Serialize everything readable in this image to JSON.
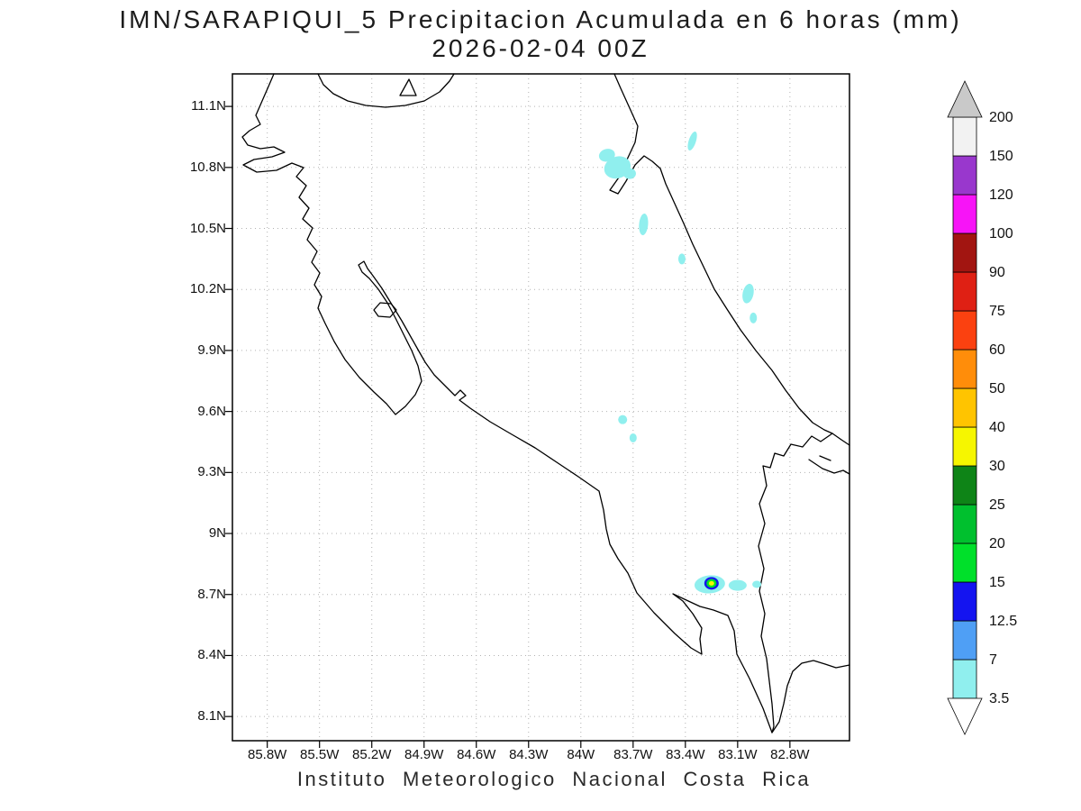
{
  "title": {
    "line1": "IMN/SARAPIQUI_5 Precipitacion Acumulada en 6 horas (mm)",
    "line2": "2026-02-04 00Z"
  },
  "footer": "Instituto Meteorologico Nacional Costa Rica",
  "chart_data": {
    "type": "heatmap",
    "title": "IMN/SARAPIQUI_5 Precipitacion Acumulada en 6 horas (mm)",
    "datetime": "2026-02-04 00Z",
    "units": "mm",
    "region": "Costa Rica",
    "extent": {
      "lon_west": 86.0,
      "lon_east": 82.458,
      "lat_north": 11.26,
      "lat_south": 7.981
    },
    "lat_ticks": [
      "11.1N",
      "10.8N",
      "10.5N",
      "10.2N",
      "9.9N",
      "9.6N",
      "9.3N",
      "9N",
      "8.7N",
      "8.4N",
      "8.1N"
    ],
    "lon_ticks": [
      "85.8W",
      "85.5W",
      "85.2W",
      "84.9W",
      "84.6W",
      "84.3W",
      "84W",
      "83.7W",
      "83.4W",
      "83.1W",
      "82.8W"
    ],
    "grid": true,
    "colorbar": {
      "levels": [
        3.5,
        7,
        12.5,
        15,
        20,
        25,
        30,
        40,
        50,
        60,
        75,
        90,
        100,
        120,
        150,
        200
      ],
      "colors": [
        "#90efee",
        "#4f9ff5",
        "#1414f0",
        "#00e02a",
        "#00c02e",
        "#0e8417",
        "#f6f600",
        "#ffc400",
        "#ff8d0a",
        "#fb4110",
        "#df2014",
        "#a21511",
        "#f714f7",
        "#9937cd",
        "#f2f2f2"
      ],
      "above_color": "#c9c9c9",
      "below_color": "#ffffff"
    },
    "precip_features": [
      {
        "lon": 83.85,
        "lat": 10.86,
        "mm": 5,
        "rx": 9,
        "ry": 7,
        "rot": -15
      },
      {
        "lon": 83.79,
        "lat": 10.8,
        "mm": 5,
        "rx": 15,
        "ry": 12,
        "rot": -20
      },
      {
        "lon": 83.72,
        "lat": 10.77,
        "mm": 5,
        "rx": 7,
        "ry": 6,
        "rot": 0
      },
      {
        "lon": 83.36,
        "lat": 10.93,
        "mm": 5,
        "rx": 4,
        "ry": 11,
        "rot": 18
      },
      {
        "lon": 83.64,
        "lat": 10.52,
        "mm": 5,
        "rx": 5,
        "ry": 12,
        "rot": 5
      },
      {
        "lon": 83.42,
        "lat": 10.35,
        "mm": 5,
        "rx": 4,
        "ry": 6,
        "rot": 0
      },
      {
        "lon": 83.04,
        "lat": 10.18,
        "mm": 5,
        "rx": 6,
        "ry": 11,
        "rot": 12
      },
      {
        "lon": 83.01,
        "lat": 10.06,
        "mm": 5,
        "rx": 4,
        "ry": 6,
        "rot": 0
      },
      {
        "lon": 83.76,
        "lat": 9.56,
        "mm": 5,
        "rx": 5,
        "ry": 5,
        "rot": 0
      },
      {
        "lon": 83.7,
        "lat": 9.47,
        "mm": 5,
        "rx": 4,
        "ry": 5,
        "rot": 0
      },
      {
        "lon": 83.26,
        "lat": 8.75,
        "mm": 5,
        "rx": 17,
        "ry": 10,
        "rot": -5
      },
      {
        "lon": 83.1,
        "lat": 8.745,
        "mm": 5,
        "rx": 10,
        "ry": 6,
        "rot": 0
      },
      {
        "lon": 82.99,
        "lat": 8.75,
        "mm": 5,
        "rx": 5,
        "ry": 4,
        "rot": 0
      },
      {
        "lon": 83.25,
        "lat": 8.755,
        "mm": 13,
        "rx": 8,
        "ry": 7,
        "rot": 0
      },
      {
        "lon": 83.25,
        "lat": 8.755,
        "mm": 16,
        "rx": 5.5,
        "ry": 4.8,
        "rot": 0
      },
      {
        "lon": 83.25,
        "lat": 8.755,
        "mm": 32,
        "rx": 3,
        "ry": 2.6,
        "rot": 0
      }
    ]
  }
}
